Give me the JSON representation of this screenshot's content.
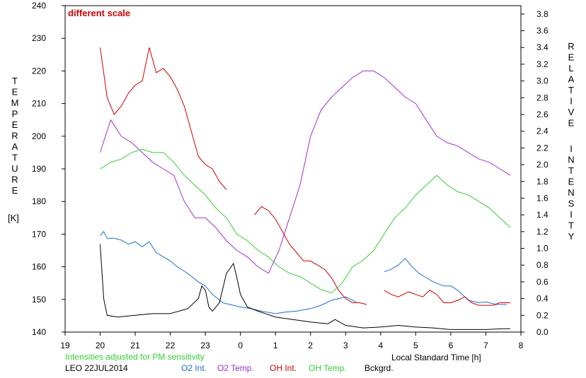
{
  "chart_data": {
    "type": "line",
    "annotation_top": "different scale",
    "annotation_bottom": "Intensities adjusted for PM sensitivity",
    "footer_left": "LEO 22JUL2014",
    "xlabel": "Local Standard Time [h]",
    "ylabel_left": [
      "T",
      "E",
      "M",
      "P",
      "E",
      "R",
      "A",
      "T",
      "U",
      "R",
      "E"
    ],
    "ylabel_left_unit": "[K]",
    "ylabel_right_1": [
      "R",
      "E",
      "L",
      "A",
      "T",
      "I",
      "V",
      "E"
    ],
    "ylabel_right_2": [
      "I",
      "N",
      "T",
      "E",
      "N",
      "S",
      "I",
      "T",
      "Y"
    ],
    "x_ticks": [
      "19",
      "20",
      "21",
      "22",
      "23",
      "0",
      "1",
      "2",
      "3",
      "4",
      "5",
      "6",
      "7",
      "8"
    ],
    "x_tick_values": [
      19,
      20,
      21,
      22,
      23,
      24,
      25,
      26,
      27,
      28,
      29,
      30,
      31,
      32
    ],
    "xlim": [
      19,
      32
    ],
    "y_left_ticks": [
      "140",
      "150",
      "160",
      "170",
      "180",
      "190",
      "200",
      "210",
      "220",
      "230",
      "240"
    ],
    "ylim_left": [
      140,
      240
    ],
    "y_right_ticks": [
      "0.0",
      "0.2",
      "0.4",
      "0.6",
      "0.8",
      "1.0",
      "1.2",
      "1.4",
      "1.6",
      "1.8",
      "2.0",
      "2.2",
      "2.4",
      "2.6",
      "2.8",
      "3.0",
      "3.2",
      "3.4",
      "3.6",
      "3.8"
    ],
    "ylim_right": [
      0,
      3.9
    ],
    "series": [
      {
        "name": "O2 Int.",
        "color": "#1a6fd0",
        "axis": "right",
        "x": [
          20.0,
          20.1,
          20.2,
          20.4,
          20.6,
          20.8,
          21.0,
          21.2,
          21.4,
          21.6,
          21.8,
          22.0,
          22.2,
          22.5,
          22.8,
          23.0,
          23.2,
          23.5,
          23.8,
          24.0,
          24.3,
          24.6,
          25.0,
          25.3,
          25.6,
          26.0,
          26.3,
          26.6,
          27.0,
          27.3
        ],
        "y": [
          1.15,
          1.2,
          1.12,
          1.12,
          1.1,
          1.05,
          1.08,
          1.02,
          1.08,
          0.95,
          0.9,
          0.85,
          0.78,
          0.7,
          0.6,
          0.55,
          0.45,
          0.35,
          0.32,
          0.3,
          0.28,
          0.25,
          0.22,
          0.24,
          0.25,
          0.28,
          0.32,
          0.38,
          0.42,
          0.36
        ]
      },
      {
        "name": "O2 Int.",
        "color": "#1a6fd0",
        "axis": "right",
        "x": [
          28.1,
          28.3,
          28.5,
          28.7,
          28.9,
          29.1,
          29.3,
          29.5,
          29.8,
          30.0,
          30.2,
          30.5,
          30.8,
          31.0,
          31.3,
          31.6
        ],
        "y": [
          0.72,
          0.75,
          0.8,
          0.88,
          0.78,
          0.7,
          0.65,
          0.6,
          0.55,
          0.55,
          0.5,
          0.38,
          0.35,
          0.36,
          0.33,
          0.33
        ]
      },
      {
        "name": "O2 Temp.",
        "color": "#9932cc",
        "axis": "left",
        "x": [
          20.0,
          20.3,
          20.6,
          20.9,
          21.2,
          21.5,
          21.8,
          22.1,
          22.4,
          22.7,
          23.0,
          23.3,
          23.6,
          23.9,
          24.2,
          24.5,
          24.8,
          25.1,
          25.4,
          25.7,
          26.0,
          26.3,
          26.6,
          26.9,
          27.2,
          27.5,
          27.8,
          28.1,
          28.4,
          28.7,
          29.0,
          29.3,
          29.6,
          29.9,
          30.2,
          30.5,
          30.8,
          31.1,
          31.4,
          31.7
        ],
        "y": [
          195,
          205,
          200,
          198,
          195,
          192,
          190,
          188,
          180,
          175,
          175,
          172,
          168,
          165,
          163,
          160,
          158,
          165,
          175,
          185,
          200,
          208,
          212,
          215,
          218,
          220,
          220,
          218,
          215,
          212,
          210,
          205,
          200,
          198,
          197,
          195,
          193,
          192,
          190,
          188
        ]
      },
      {
        "name": "OH Int.",
        "color": "#cc0000",
        "axis": "right",
        "x": [
          20.0,
          20.2,
          20.4,
          20.6,
          20.8,
          21.0,
          21.2,
          21.4,
          21.6,
          21.8,
          22.0,
          22.2,
          22.4,
          22.6,
          22.8,
          23.0,
          23.2,
          23.4,
          23.6
        ],
        "y": [
          3.4,
          2.8,
          2.6,
          2.7,
          2.85,
          2.95,
          3.0,
          3.4,
          3.1,
          3.15,
          3.05,
          2.9,
          2.7,
          2.4,
          2.1,
          2.0,
          1.95,
          1.8,
          1.7
        ]
      },
      {
        "name": "OH Int.",
        "color": "#cc0000",
        "axis": "right",
        "x": [
          24.4,
          24.6,
          24.8,
          25.0,
          25.2,
          25.4,
          25.6,
          25.8,
          26.0,
          26.2,
          26.4,
          26.6,
          26.8,
          27.0,
          27.2,
          27.4,
          27.6
        ],
        "y": [
          1.4,
          1.5,
          1.45,
          1.35,
          1.2,
          1.05,
          0.95,
          0.85,
          0.85,
          0.8,
          0.75,
          0.65,
          0.5,
          0.4,
          0.35,
          0.35,
          0.33
        ]
      },
      {
        "name": "OH Int.",
        "color": "#cc0000",
        "axis": "right",
        "x": [
          28.1,
          28.3,
          28.5,
          28.8,
          29.0,
          29.2,
          29.4,
          29.6,
          29.8,
          30.0,
          30.2,
          30.4,
          30.6,
          30.8,
          31.0,
          31.2,
          31.4,
          31.7
        ],
        "y": [
          0.5,
          0.45,
          0.42,
          0.48,
          0.45,
          0.42,
          0.5,
          0.45,
          0.35,
          0.35,
          0.38,
          0.42,
          0.35,
          0.32,
          0.32,
          0.32,
          0.35,
          0.35
        ]
      },
      {
        "name": "OH Temp.",
        "color": "#33cc33",
        "axis": "left",
        "x": [
          20.0,
          20.3,
          20.6,
          20.9,
          21.2,
          21.5,
          21.8,
          22.1,
          22.4,
          22.7,
          23.0,
          23.3,
          23.6,
          23.9,
          24.2,
          24.5,
          24.8,
          25.1,
          25.4,
          25.7,
          26.0,
          26.3,
          26.6,
          26.9,
          27.2,
          27.5,
          27.8,
          28.1,
          28.4,
          28.7,
          29.0,
          29.3,
          29.6,
          29.9,
          30.2,
          30.5,
          30.8,
          31.1,
          31.4,
          31.7
        ],
        "y": [
          190,
          192,
          193,
          195,
          196,
          195,
          195,
          192,
          188,
          185,
          182,
          178,
          175,
          170,
          168,
          165,
          163,
          160,
          158,
          157,
          155,
          153,
          152,
          155,
          160,
          162,
          165,
          170,
          175,
          178,
          182,
          185,
          188,
          185,
          183,
          182,
          180,
          178,
          175,
          172
        ]
      },
      {
        "name": "Bckgrd.",
        "color": "#000000",
        "axis": "right",
        "x": [
          20.0,
          20.1,
          20.2,
          20.5,
          21.0,
          21.5,
          22.0,
          22.5,
          22.8,
          22.9,
          23.0,
          23.1,
          23.2,
          23.4,
          23.6,
          23.8,
          23.9,
          24.0,
          24.2,
          24.5,
          25.0,
          25.5,
          26.0,
          26.5,
          26.7,
          27.0,
          27.5,
          28.0,
          28.5,
          29.0,
          29.5,
          30.0,
          30.5,
          31.0,
          31.5,
          31.7
        ],
        "y": [
          1.05,
          0.4,
          0.2,
          0.18,
          0.2,
          0.22,
          0.22,
          0.28,
          0.4,
          0.55,
          0.5,
          0.3,
          0.25,
          0.35,
          0.7,
          0.82,
          0.65,
          0.45,
          0.3,
          0.25,
          0.18,
          0.15,
          0.12,
          0.1,
          0.15,
          0.08,
          0.05,
          0.06,
          0.08,
          0.06,
          0.05,
          0.03,
          0.03,
          0.03,
          0.04,
          0.04
        ]
      }
    ],
    "legend": [
      {
        "label": "O2 Int.",
        "color": "#1a6fd0"
      },
      {
        "label": "O2 Temp.",
        "color": "#9932cc"
      },
      {
        "label": "OH Int.",
        "color": "#cc0000"
      },
      {
        "label": "OH Temp.",
        "color": "#33cc33"
      },
      {
        "label": "Bckgrd.",
        "color": "#000000"
      }
    ],
    "grid": false,
    "legend_position": "bottom",
    "colors": {
      "annotation_top": "#cc0000",
      "annotation_bottom": "#33cc33"
    }
  }
}
